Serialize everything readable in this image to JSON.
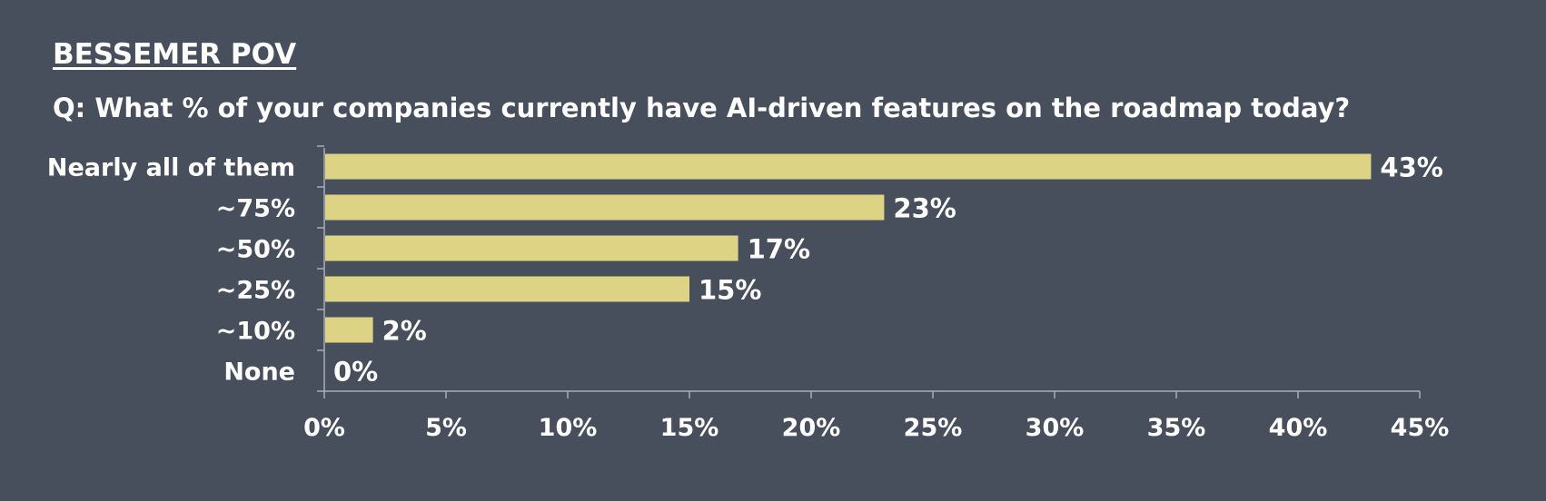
{
  "header": "BESSEMER POV",
  "question": "Q: What % of your companies currently have AI-driven features on the roadmap today?",
  "colors": {
    "background": "#474f5c",
    "bar": "#dcd384",
    "axis": "#a8aeb6",
    "text": "#ffffff"
  },
  "chart_data": {
    "type": "bar",
    "orientation": "horizontal",
    "categories": [
      "Nearly all of them",
      "~75%",
      "~50%",
      "~25%",
      "~10%",
      "None"
    ],
    "values": [
      43,
      23,
      17,
      15,
      2,
      0
    ],
    "value_labels": [
      "43%",
      "23%",
      "17%",
      "15%",
      "2%",
      "0%"
    ],
    "xlim": [
      0,
      45
    ],
    "xticks": [
      0,
      5,
      10,
      15,
      20,
      25,
      30,
      35,
      40,
      45
    ],
    "xtick_labels": [
      "0%",
      "5%",
      "10%",
      "15%",
      "20%",
      "25%",
      "30%",
      "35%",
      "40%",
      "45%"
    ],
    "grid": false,
    "legend": "none"
  }
}
